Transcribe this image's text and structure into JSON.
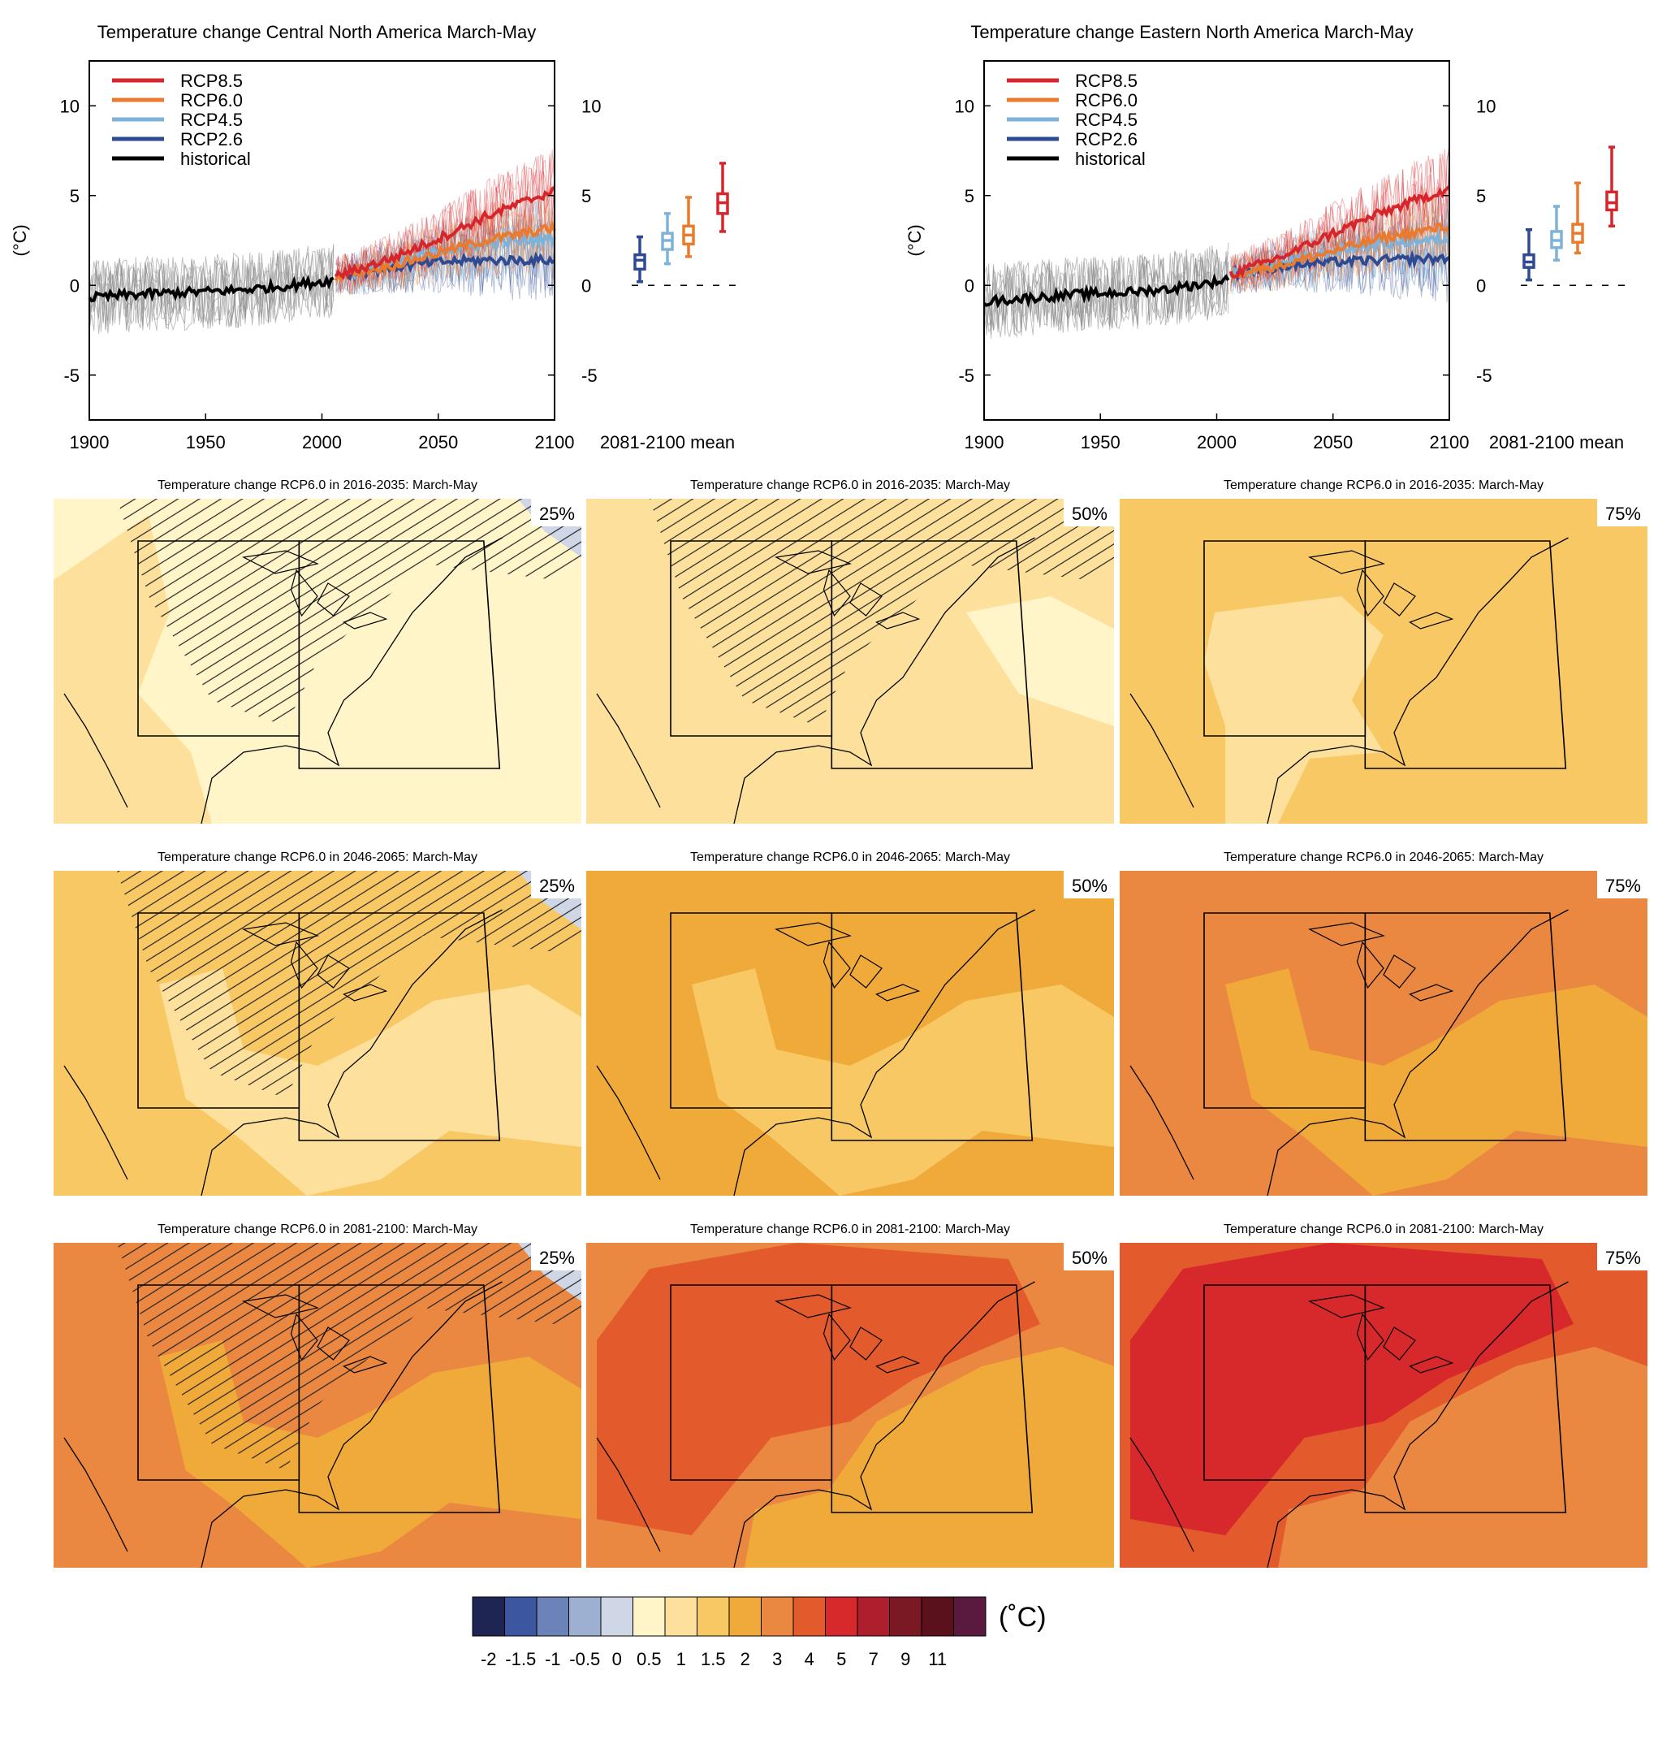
{
  "scale_colors": {
    "scale_label": "(˚C)",
    "bins": [
      {
        "label": "-2",
        "color": "#1f2552"
      },
      {
        "label": "-1.5",
        "color": "#3c56a0"
      },
      {
        "label": "-1",
        "color": "#6b83b8"
      },
      {
        "label": "-0.5",
        "color": "#9eb0d2"
      },
      {
        "label": "0",
        "color": "#cfd7e6"
      },
      {
        "label": "0.5",
        "color": "#fff5c9"
      },
      {
        "label": "1",
        "color": "#fde09c"
      },
      {
        "label": "1.5",
        "color": "#f8c865"
      },
      {
        "label": "2",
        "color": "#f0aa3a"
      },
      {
        "label": "3",
        "color": "#ea8740"
      },
      {
        "label": "4",
        "color": "#e35a2c"
      },
      {
        "label": "5",
        "color": "#d7282c"
      },
      {
        "label": "7",
        "color": "#ad1f2c"
      },
      {
        "label": "9",
        "color": "#7a1823"
      },
      {
        "label": "11",
        "color": "#5a111c"
      },
      {
        "label": "",
        "color": "#5a1a40"
      }
    ],
    "hatch_color": "#222222",
    "region_box_color": "#000000"
  },
  "series_colors": {
    "RCP8.5": "#d7262b",
    "RCP6.0": "#ea7b2e",
    "RCP4.5": "#7fb2d9",
    "RCP2.6": "#2e4a92",
    "historical": "#000000"
  },
  "chart_data": [
    {
      "type": "line",
      "title": "Temperature change Central North America March-May",
      "ylabel": "(°C)",
      "xlim": [
        1900,
        2100
      ],
      "ylim": [
        -7.5,
        12.5
      ],
      "x_ticks": [
        1900,
        1950,
        2000,
        2050,
        2100
      ],
      "y_ticks": [
        -5,
        0,
        5,
        10
      ],
      "y_tick_labels": [
        "-5",
        "0",
        "5",
        "10"
      ],
      "legend_position": "top-left",
      "legend": [
        "RCP8.5",
        "RCP6.0",
        "RCP4.5",
        "RCP2.6",
        "historical"
      ],
      "series": [
        {
          "name": "historical",
          "x": [
            1900,
            1920,
            1940,
            1960,
            1980,
            2000,
            2005
          ],
          "y": [
            -0.7,
            -0.5,
            -0.4,
            -0.3,
            -0.1,
            0.2,
            0.3
          ]
        },
        {
          "name": "RCP2.6",
          "x": [
            2006,
            2030,
            2050,
            2070,
            2100
          ],
          "y": [
            0.5,
            1.0,
            1.3,
            1.4,
            1.4
          ]
        },
        {
          "name": "RCP4.5",
          "x": [
            2006,
            2030,
            2050,
            2070,
            2100
          ],
          "y": [
            0.5,
            1.2,
            1.9,
            2.3,
            2.6
          ]
        },
        {
          "name": "RCP6.0",
          "x": [
            2006,
            2030,
            2050,
            2070,
            2100
          ],
          "y": [
            0.5,
            1.1,
            1.8,
            2.5,
            3.2
          ]
        },
        {
          "name": "RCP8.5",
          "x": [
            2006,
            2030,
            2050,
            2070,
            2100
          ],
          "y": [
            0.5,
            1.5,
            2.6,
            3.8,
            5.3
          ]
        }
      ],
      "box_summary": {
        "label": "2081-2100 mean",
        "boxes": [
          {
            "name": "RCP2.6",
            "min": 0.2,
            "q1": 0.9,
            "median": 1.4,
            "q3": 1.7,
            "max": 2.7
          },
          {
            "name": "RCP4.5",
            "min": 1.2,
            "q1": 2.0,
            "median": 2.5,
            "q3": 2.9,
            "max": 4.0
          },
          {
            "name": "RCP6.0",
            "min": 1.6,
            "q1": 2.3,
            "median": 2.8,
            "q3": 3.3,
            "max": 4.9
          },
          {
            "name": "RCP8.5",
            "min": 3.0,
            "q1": 4.0,
            "median": 4.6,
            "q3": 5.1,
            "max": 6.8
          }
        ]
      }
    },
    {
      "type": "line",
      "title": "Temperature change Eastern North America March-May",
      "ylabel": "(°C)",
      "xlim": [
        1900,
        2100
      ],
      "ylim": [
        -7.5,
        12.5
      ],
      "x_ticks": [
        1900,
        1950,
        2000,
        2050,
        2100
      ],
      "y_ticks": [
        -5,
        0,
        5,
        10
      ],
      "y_tick_labels": [
        "-5",
        "0",
        "5",
        "10"
      ],
      "legend_position": "top-left",
      "legend": [
        "RCP8.5",
        "RCP6.0",
        "RCP4.5",
        "RCP2.6",
        "historical"
      ],
      "series": [
        {
          "name": "historical",
          "x": [
            1900,
            1920,
            1940,
            1960,
            1980,
            2000,
            2005
          ],
          "y": [
            -0.9,
            -0.7,
            -0.5,
            -0.4,
            -0.2,
            0.2,
            0.4
          ]
        },
        {
          "name": "RCP2.6",
          "x": [
            2006,
            2030,
            2050,
            2070,
            2100
          ],
          "y": [
            0.6,
            1.1,
            1.3,
            1.4,
            1.5
          ]
        },
        {
          "name": "RCP4.5",
          "x": [
            2006,
            2030,
            2050,
            2070,
            2100
          ],
          "y": [
            0.6,
            1.3,
            1.9,
            2.3,
            2.6
          ]
        },
        {
          "name": "RCP6.0",
          "x": [
            2006,
            2030,
            2050,
            2070,
            2100
          ],
          "y": [
            0.6,
            1.2,
            1.9,
            2.6,
            3.3
          ]
        },
        {
          "name": "RCP8.5",
          "x": [
            2006,
            2030,
            2050,
            2070,
            2100
          ],
          "y": [
            0.6,
            1.7,
            2.9,
            4.0,
            5.4
          ]
        }
      ],
      "box_summary": {
        "label": "2081-2100 mean",
        "boxes": [
          {
            "name": "RCP2.6",
            "min": 0.3,
            "q1": 1.0,
            "median": 1.3,
            "q3": 1.7,
            "max": 3.1
          },
          {
            "name": "RCP4.5",
            "min": 1.4,
            "q1": 2.1,
            "median": 2.5,
            "q3": 3.0,
            "max": 4.4
          },
          {
            "name": "RCP6.0",
            "min": 1.8,
            "q1": 2.4,
            "median": 2.9,
            "q3": 3.4,
            "max": 5.7
          },
          {
            "name": "RCP8.5",
            "min": 3.3,
            "q1": 4.2,
            "median": 4.6,
            "q3": 5.2,
            "max": 7.7
          }
        ]
      }
    },
    {
      "type": "heatmap",
      "title": "Temperature change RCP6.0 in 2016-2035: March-May",
      "maps": [
        {
          "percentile": "25%",
          "base_bin": 5,
          "patches": [
            {
              "bin": 6,
              "where": "west-and-coast"
            },
            {
              "bin": 4,
              "where": "far-northeast"
            }
          ],
          "hatched": true
        },
        {
          "percentile": "50%",
          "base_bin": 6,
          "patches": [
            {
              "bin": 5,
              "where": "east-atlantic"
            }
          ],
          "hatched": true
        },
        {
          "percentile": "75%",
          "base_bin": 7,
          "patches": [
            {
              "bin": 6,
              "where": "central-and-gulf"
            }
          ],
          "hatched": false
        }
      ]
    },
    {
      "type": "heatmap",
      "title": "Temperature change RCP6.0 in 2046-2065: March-May",
      "maps": [
        {
          "percentile": "25%",
          "base_bin": 7,
          "patches": [
            {
              "bin": 6,
              "where": "central-and-atlantic"
            },
            {
              "bin": 4,
              "where": "far-northeast"
            }
          ],
          "hatched": true
        },
        {
          "percentile": "50%",
          "base_bin": 8,
          "patches": [
            {
              "bin": 7,
              "where": "central-and-atlantic"
            }
          ],
          "hatched": false
        },
        {
          "percentile": "75%",
          "base_bin": 9,
          "patches": [
            {
              "bin": 8,
              "where": "central-and-atlantic"
            }
          ],
          "hatched": false
        }
      ]
    },
    {
      "type": "heatmap",
      "title": "Temperature change RCP6.0 in 2081-2100: March-May",
      "maps": [
        {
          "percentile": "25%",
          "base_bin": 9,
          "patches": [
            {
              "bin": 8,
              "where": "central-and-atlantic"
            },
            {
              "bin": 4,
              "where": "far-northeast"
            }
          ],
          "hatched": true
        },
        {
          "percentile": "50%",
          "base_bin": 9,
          "patches": [
            {
              "bin": 10,
              "where": "north-and-west"
            },
            {
              "bin": 8,
              "where": "atlantic-and-gulf"
            }
          ],
          "hatched": false
        },
        {
          "percentile": "75%",
          "base_bin": 10,
          "patches": [
            {
              "bin": 11,
              "where": "north-and-west"
            },
            {
              "bin": 9,
              "where": "atlantic-and-gulf"
            }
          ],
          "hatched": false
        }
      ]
    }
  ]
}
